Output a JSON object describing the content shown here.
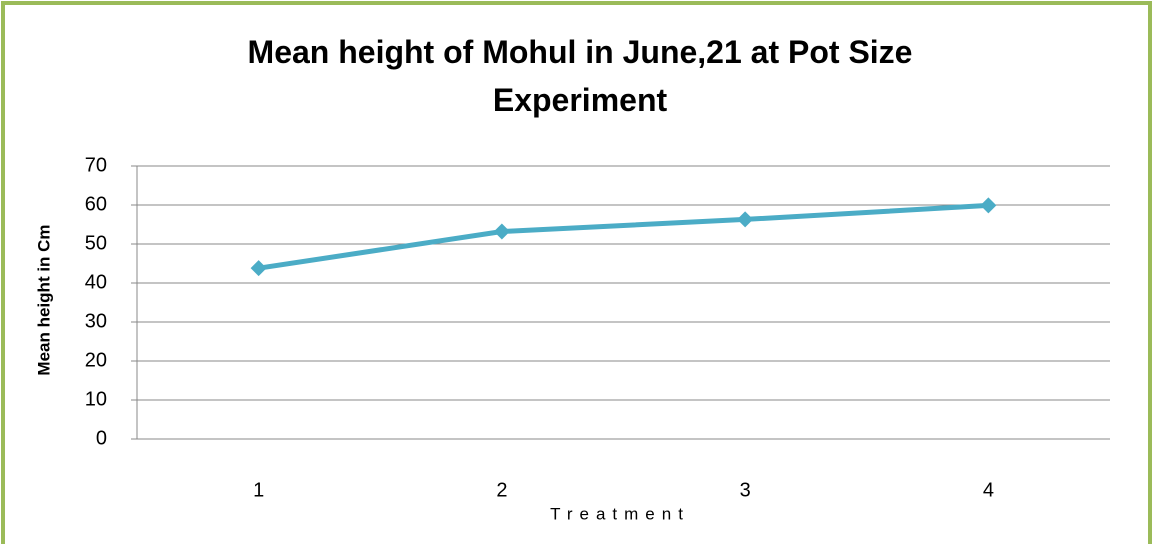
{
  "chart_data": {
    "type": "line",
    "title": "Mean height of Mohul in June,21 at Pot Size Experiment",
    "x_label": "Treatment",
    "y_label": "Mean height in Cm",
    "categories": [
      "1",
      "2",
      "3",
      "4"
    ],
    "series": [
      {
        "name": "Mean height",
        "color": "#4bacc6",
        "values": [
          43.8,
          53.2,
          56.3,
          59.9
        ]
      }
    ],
    "ylim": [
      0,
      70
    ],
    "yticks": [
      0,
      10,
      20,
      30,
      40,
      50,
      60,
      70
    ],
    "grid": true
  }
}
